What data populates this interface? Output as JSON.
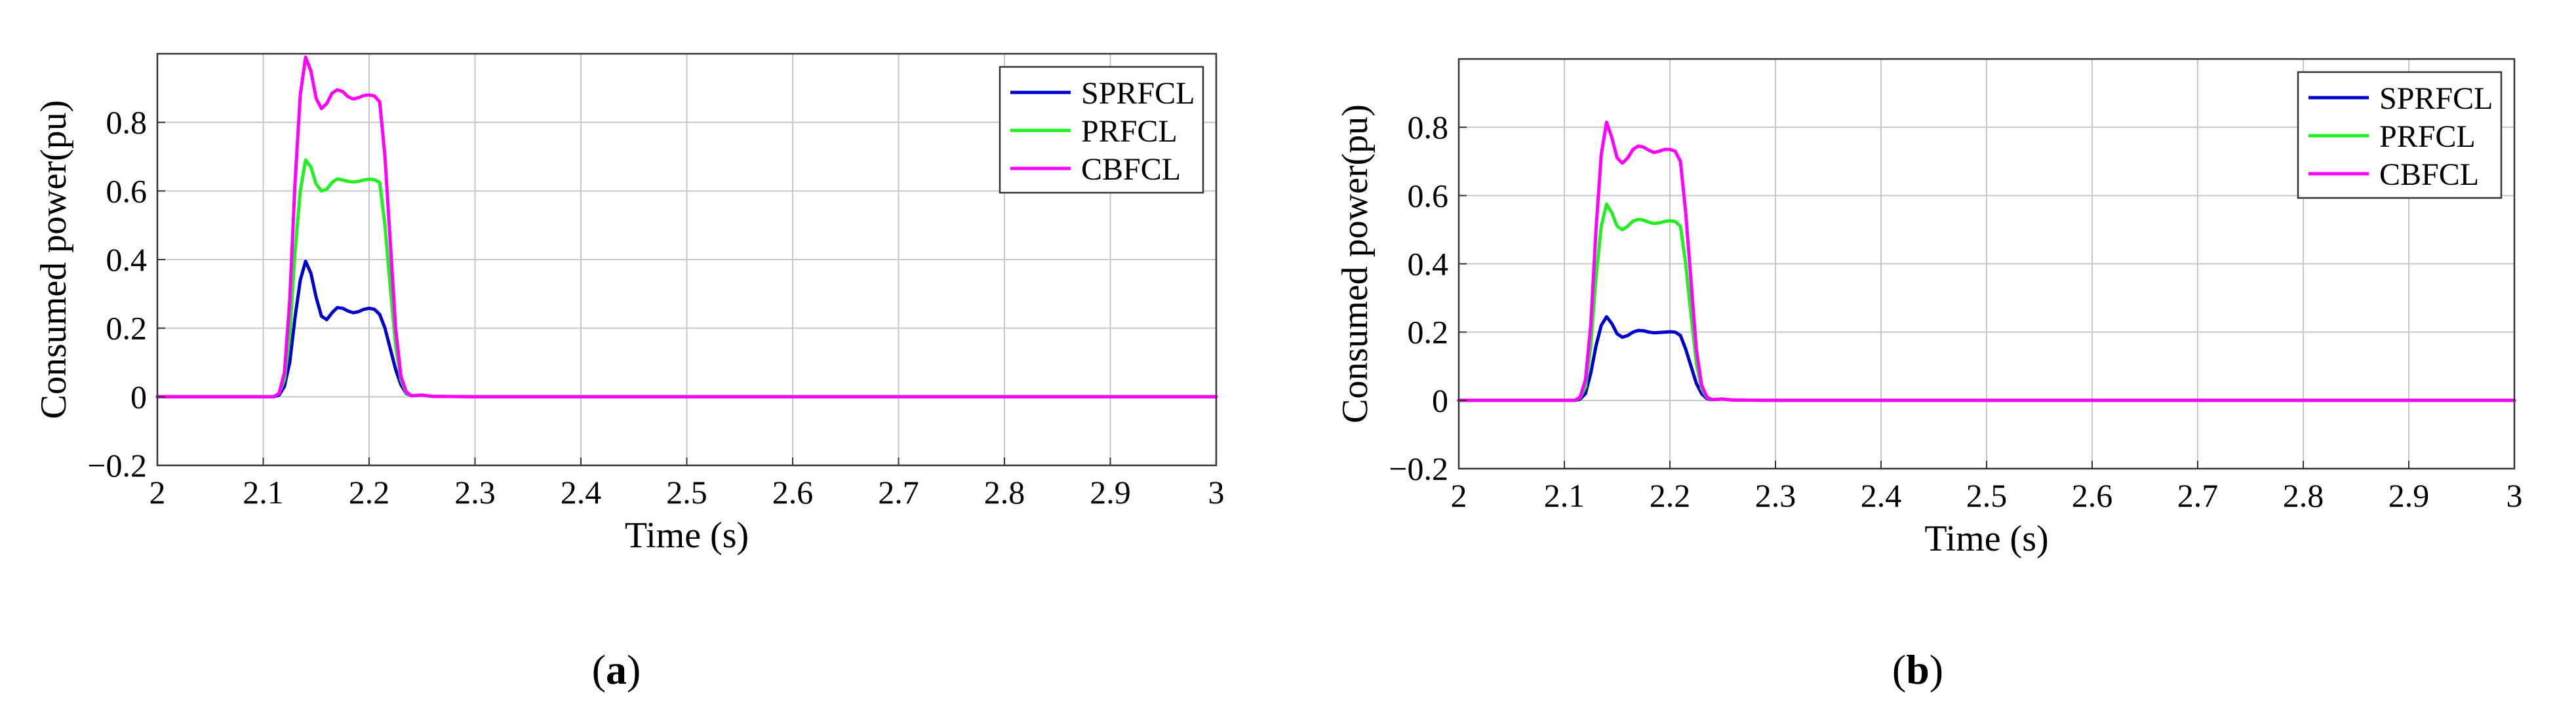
{
  "colors": {
    "SPRFCL": "#0000cc",
    "PRFCL": "#22ee22",
    "CBFCL": "#ff00ff",
    "grid": "#c8c8c8",
    "axis": "#333333"
  },
  "chart_data": [
    {
      "type": "line",
      "panel_label": "a",
      "title": "",
      "xlabel": "Time (s)",
      "ylabel": "Consumed power(pu)",
      "xlim": [
        2,
        3
      ],
      "ylim": [
        -0.2,
        1.0
      ],
      "xticks": [
        2,
        2.1,
        2.2,
        2.3,
        2.4,
        2.5,
        2.6,
        2.7,
        2.8,
        2.9,
        3
      ],
      "xtick_labels": [
        "2",
        "2.1",
        "2.2",
        "2.3",
        "2.4",
        "2.5",
        "2.6",
        "2.7",
        "2.8",
        "2.9",
        "3"
      ],
      "yticks": [
        -0.2,
        0,
        0.2,
        0.4,
        0.6,
        0.8
      ],
      "ytick_labels": [
        "−0.2",
        "0",
        "0.2",
        "0.4",
        "0.6",
        "0.8"
      ],
      "grid": true,
      "legend_position": "top-right",
      "series": [
        {
          "name": "SPRFCL",
          "x": [
            2.0,
            2.1,
            2.11,
            2.115,
            2.12,
            2.125,
            2.13,
            2.135,
            2.14,
            2.145,
            2.15,
            2.155,
            2.16,
            2.165,
            2.17,
            2.175,
            2.18,
            2.185,
            2.19,
            2.195,
            2.2,
            2.205,
            2.21,
            2.215,
            2.22,
            2.225,
            2.23,
            2.235,
            2.24,
            2.245,
            2.25,
            2.255,
            2.26,
            2.3,
            3.0
          ],
          "y": [
            0,
            0,
            0,
            0.005,
            0.03,
            0.1,
            0.23,
            0.34,
            0.395,
            0.36,
            0.29,
            0.235,
            0.225,
            0.245,
            0.26,
            0.258,
            0.25,
            0.245,
            0.248,
            0.255,
            0.258,
            0.255,
            0.24,
            0.2,
            0.14,
            0.08,
            0.035,
            0.01,
            0.003,
            0.004,
            0.005,
            0.003,
            0.001,
            0,
            0
          ]
        },
        {
          "name": "PRFCL",
          "x": [
            2.0,
            2.1,
            2.11,
            2.115,
            2.12,
            2.125,
            2.13,
            2.135,
            2.14,
            2.145,
            2.15,
            2.155,
            2.16,
            2.165,
            2.17,
            2.175,
            2.18,
            2.185,
            2.19,
            2.195,
            2.2,
            2.205,
            2.21,
            2.215,
            2.22,
            2.225,
            2.23,
            2.235,
            2.24,
            2.245,
            2.25,
            2.255,
            2.26,
            2.3,
            3.0
          ],
          "y": [
            0,
            0,
            0,
            0.01,
            0.05,
            0.18,
            0.42,
            0.6,
            0.69,
            0.67,
            0.62,
            0.6,
            0.605,
            0.625,
            0.635,
            0.632,
            0.628,
            0.626,
            0.628,
            0.632,
            0.634,
            0.633,
            0.625,
            0.5,
            0.32,
            0.15,
            0.05,
            0.012,
            0.003,
            0.004,
            0.005,
            0.003,
            0.001,
            0,
            0
          ]
        },
        {
          "name": "CBFCL",
          "x": [
            2.0,
            2.1,
            2.11,
            2.115,
            2.12,
            2.125,
            2.13,
            2.135,
            2.14,
            2.145,
            2.15,
            2.155,
            2.16,
            2.165,
            2.17,
            2.175,
            2.18,
            2.185,
            2.19,
            2.195,
            2.2,
            2.205,
            2.21,
            2.215,
            2.22,
            2.225,
            2.23,
            2.235,
            2.24,
            2.245,
            2.25,
            2.255,
            2.26,
            2.3,
            3.0
          ],
          "y": [
            0,
            0,
            0,
            0.01,
            0.07,
            0.28,
            0.62,
            0.88,
            0.99,
            0.95,
            0.87,
            0.84,
            0.855,
            0.885,
            0.895,
            0.89,
            0.875,
            0.868,
            0.872,
            0.878,
            0.88,
            0.877,
            0.86,
            0.7,
            0.45,
            0.2,
            0.06,
            0.015,
            0.003,
            0.004,
            0.005,
            0.003,
            0.001,
            0,
            0
          ]
        }
      ]
    },
    {
      "type": "line",
      "panel_label": "b",
      "title": "",
      "xlabel": "Time (s)",
      "ylabel": "Consumed power(pu)",
      "xlim": [
        2,
        3
      ],
      "ylim": [
        -0.2,
        1.0
      ],
      "xticks": [
        2,
        2.1,
        2.2,
        2.3,
        2.4,
        2.5,
        2.6,
        2.7,
        2.8,
        2.9,
        3
      ],
      "xtick_labels": [
        "2",
        "2.1",
        "2.2",
        "2.3",
        "2.4",
        "2.5",
        "2.6",
        "2.7",
        "2.8",
        "2.9",
        "3"
      ],
      "yticks": [
        -0.2,
        0,
        0.2,
        0.4,
        0.6,
        0.8
      ],
      "ytick_labels": [
        "−0.2",
        "0",
        "0.2",
        "0.4",
        "0.6",
        "0.8"
      ],
      "grid": true,
      "legend_position": "top-right",
      "series": [
        {
          "name": "SPRFCL",
          "x": [
            2.0,
            2.1,
            2.11,
            2.115,
            2.12,
            2.125,
            2.13,
            2.135,
            2.14,
            2.145,
            2.15,
            2.155,
            2.16,
            2.165,
            2.17,
            2.175,
            2.18,
            2.185,
            2.19,
            2.195,
            2.2,
            2.205,
            2.21,
            2.215,
            2.22,
            2.225,
            2.23,
            2.235,
            2.24,
            2.245,
            2.25,
            2.255,
            2.26,
            2.3,
            3.0
          ],
          "y": [
            0,
            0,
            0,
            0.004,
            0.02,
            0.08,
            0.16,
            0.22,
            0.245,
            0.225,
            0.195,
            0.185,
            0.19,
            0.2,
            0.205,
            0.204,
            0.2,
            0.198,
            0.199,
            0.2,
            0.201,
            0.2,
            0.19,
            0.15,
            0.1,
            0.05,
            0.02,
            0.005,
            0.002,
            0.003,
            0.004,
            0.002,
            0.001,
            0,
            0
          ]
        },
        {
          "name": "PRFCL",
          "x": [
            2.0,
            2.1,
            2.11,
            2.115,
            2.12,
            2.125,
            2.13,
            2.135,
            2.14,
            2.145,
            2.15,
            2.155,
            2.16,
            2.165,
            2.17,
            2.175,
            2.18,
            2.185,
            2.19,
            2.195,
            2.2,
            2.205,
            2.21,
            2.215,
            2.22,
            2.225,
            2.23,
            2.235,
            2.24,
            2.245,
            2.25,
            2.255,
            2.26,
            2.3,
            3.0
          ],
          "y": [
            0,
            0,
            0,
            0.008,
            0.04,
            0.16,
            0.36,
            0.51,
            0.575,
            0.55,
            0.51,
            0.5,
            0.51,
            0.525,
            0.53,
            0.528,
            0.522,
            0.518,
            0.52,
            0.524,
            0.526,
            0.524,
            0.51,
            0.4,
            0.25,
            0.11,
            0.035,
            0.008,
            0.002,
            0.003,
            0.004,
            0.002,
            0.001,
            0,
            0
          ]
        },
        {
          "name": "CBFCL",
          "x": [
            2.0,
            2.1,
            2.11,
            2.115,
            2.12,
            2.125,
            2.13,
            2.135,
            2.14,
            2.145,
            2.15,
            2.155,
            2.16,
            2.165,
            2.17,
            2.175,
            2.18,
            2.185,
            2.19,
            2.195,
            2.2,
            2.205,
            2.21,
            2.215,
            2.22,
            2.225,
            2.23,
            2.235,
            2.24,
            2.245,
            2.25,
            2.255,
            2.26,
            2.3,
            3.0
          ],
          "y": [
            0,
            0,
            0,
            0.01,
            0.06,
            0.22,
            0.5,
            0.72,
            0.815,
            0.77,
            0.71,
            0.695,
            0.71,
            0.735,
            0.745,
            0.742,
            0.733,
            0.726,
            0.73,
            0.735,
            0.735,
            0.73,
            0.7,
            0.55,
            0.35,
            0.15,
            0.045,
            0.01,
            0.002,
            0.003,
            0.004,
            0.002,
            0.001,
            0,
            0
          ]
        }
      ]
    }
  ]
}
